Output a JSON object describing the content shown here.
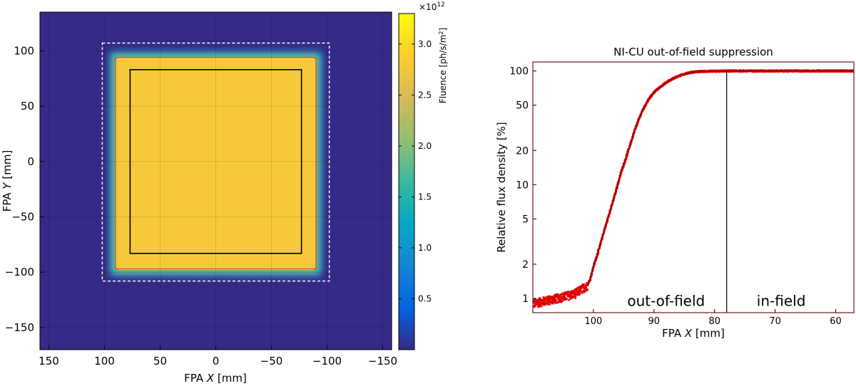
{
  "chart_data": [
    {
      "type": "heatmap",
      "xlabel_prefix": "FPA ",
      "xlabel_var": "X",
      "xlabel_unit": " [mm]",
      "ylabel_prefix": "FPA ",
      "ylabel_var": "Y",
      "ylabel_unit": " [mm]",
      "xlim": [
        158,
        -158
      ],
      "ylim": [
        -170,
        135
      ],
      "xticks": [
        150,
        100,
        50,
        0,
        -50,
        -100,
        -150
      ],
      "xtick_labels": [
        "150",
        "100",
        "50",
        "0",
        "−50",
        "−100",
        "−150"
      ],
      "yticks": [
        100,
        50,
        0,
        -50,
        -100,
        -150
      ],
      "ytick_labels": [
        "100",
        "50",
        "0",
        "−50",
        "−100",
        "−150"
      ],
      "grid": true,
      "illuminated_region": {
        "x": [
          -90,
          90
        ],
        "y": [
          -98,
          94
        ],
        "fluence": 3200000000000.0
      },
      "background_fluence": 50000000000.0,
      "detector_outline_black": {
        "x": [
          -77,
          77
        ],
        "y": [
          -83,
          83
        ]
      },
      "outline_red": {
        "x": [
          -90,
          90
        ],
        "y": [
          -97,
          94
        ]
      },
      "outline_white_dashed": {
        "x": [
          -102,
          102
        ],
        "y": [
          -108,
          107
        ]
      },
      "colorbar": {
        "label_prefix": "Fluence [ph/s/m",
        "label_sup": "2",
        "label_suffix": "]",
        "multiplier_base": "×10",
        "multiplier_exp": "12",
        "range": [
          0.0,
          3.3
        ],
        "ticks": [
          0.5,
          1.0,
          1.5,
          2.0,
          2.5,
          3.0
        ],
        "tick_labels": [
          "0.5",
          "1.0",
          "1.5",
          "2.0",
          "2.5",
          "3.0"
        ],
        "colormap": [
          "#352a87",
          "#0363e1",
          "#1485d4",
          "#06a7c6",
          "#38b99e",
          "#92bf73",
          "#d9ba56",
          "#fcce2e",
          "#f9fb0e"
        ]
      }
    },
    {
      "type": "scatter",
      "title": "NI-CU out-of-field suppression",
      "xlabel_prefix": "FPA ",
      "xlabel_var": "X",
      "xlabel_unit": " [mm]",
      "ylabel": "Relative flux density [%]",
      "yscale": "log",
      "xlim": [
        110,
        57
      ],
      "ylim": [
        0.75,
        120
      ],
      "xticks": [
        100,
        90,
        80,
        70,
        60
      ],
      "xtick_labels": [
        "100",
        "90",
        "80",
        "70",
        "60"
      ],
      "yticks": [
        1,
        2,
        5,
        10,
        20,
        50,
        100
      ],
      "ytick_labels": [
        "1",
        "2",
        "5",
        "10",
        "20",
        "50",
        "100"
      ],
      "series_color": "#dd0000",
      "profile": {
        "x": [
          110,
          106,
          103,
          102,
          101,
          100.5,
          100,
          99.5,
          99,
          98.5,
          98,
          97.5,
          97,
          96.5,
          96,
          95.5,
          95,
          94.5,
          94,
          93,
          92,
          91,
          90,
          89,
          88,
          87,
          86,
          85,
          84,
          83,
          82,
          80,
          78,
          70,
          57
        ],
        "y": [
          0.9,
          1.0,
          1.1,
          1.2,
          1.3,
          1.5,
          1.9,
          2.3,
          2.8,
          3.5,
          4.3,
          5.3,
          6.5,
          8.0,
          10,
          12.5,
          15,
          18,
          22,
          32,
          44,
          55,
          65,
          72,
          79,
          85,
          90,
          94,
          97,
          98.5,
          99,
          99.5,
          100,
          100,
          100
        ]
      },
      "divider_x": 78,
      "annotations": [
        {
          "text": "out-of-field",
          "x": 88,
          "y": 0.86
        },
        {
          "text": "in-field",
          "x": 69,
          "y": 0.86
        }
      ]
    }
  ]
}
